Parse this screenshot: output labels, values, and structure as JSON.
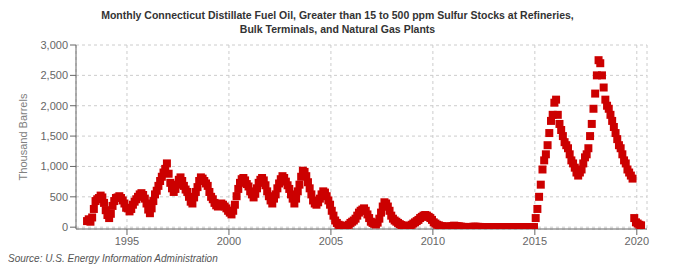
{
  "chart_data": {
    "type": "scatter",
    "title": "Monthly Connecticut Distillate Fuel Oil, Greater than 15 to 500 ppm Sulfur Stocks at Refineries,\nBulk Terminals, and Natural Gas Plants",
    "ylabel": "Thousand Barrels",
    "annotations": [
      "Source: U.S. Energy Information Administration"
    ],
    "color": "#cc0000",
    "marker": "square",
    "grid": true,
    "xlim": [
      1992.5,
      2020.5
    ],
    "ylim": [
      -30,
      3000
    ],
    "xticks": [
      1995,
      2000,
      2005,
      2010,
      2015,
      2020
    ],
    "yticks": [
      0,
      500,
      {
        "value": 1000,
        "label": "1,000"
      },
      {
        "value": 1500,
        "label": "1,500"
      },
      {
        "value": 2000,
        "label": "2,000"
      },
      {
        "value": 2500,
        "label": "2,500"
      },
      {
        "value": 3000,
        "label": "3,000"
      }
    ],
    "x": [
      1993.0416667,
      1993.125,
      1993.2083333,
      1993.2916667,
      1993.375,
      1993.4583333,
      1993.5416667,
      1993.625,
      1993.7083333,
      1993.7916667,
      1993.875,
      1993.9583333,
      1994.0416667,
      1994.125,
      1994.2083333,
      1994.2916667,
      1994.375,
      1994.4583333,
      1994.5416667,
      1994.625,
      1994.7083333,
      1994.7916667,
      1994.875,
      1994.9583333,
      1995.0416667,
      1995.125,
      1995.2083333,
      1995.2916667,
      1995.375,
      1995.4583333,
      1995.5416667,
      1995.625,
      1995.7083333,
      1995.7916667,
      1995.875,
      1995.9583333,
      1996.0416667,
      1996.125,
      1996.2083333,
      1996.2916667,
      1996.375,
      1996.4583333,
      1996.5416667,
      1996.625,
      1996.7083333,
      1996.7916667,
      1996.875,
      1996.9583333,
      1997.0416667,
      1997.125,
      1997.2083333,
      1997.2916667,
      1997.375,
      1997.4583333,
      1997.5416667,
      1997.625,
      1997.7083333,
      1997.7916667,
      1997.875,
      1997.9583333,
      1998.0416667,
      1998.125,
      1998.2083333,
      1998.2916667,
      1998.375,
      1998.4583333,
      1998.5416667,
      1998.625,
      1998.7083333,
      1998.7916667,
      1998.875,
      1998.9583333,
      1999.0416667,
      1999.125,
      1999.2083333,
      1999.2916667,
      1999.375,
      1999.4583333,
      1999.5416667,
      1999.625,
      1999.7083333,
      1999.7916667,
      1999.875,
      1999.9583333,
      2000.0416667,
      2000.125,
      2000.2083333,
      2000.2916667,
      2000.375,
      2000.4583333,
      2000.5416667,
      2000.625,
      2000.7083333,
      2000.7916667,
      2000.875,
      2000.9583333,
      2001.0416667,
      2001.125,
      2001.2083333,
      2001.2916667,
      2001.375,
      2001.4583333,
      2001.5416667,
      2001.625,
      2001.7083333,
      2001.7916667,
      2001.875,
      2001.9583333,
      2002.0416667,
      2002.125,
      2002.2083333,
      2002.2916667,
      2002.375,
      2002.4583333,
      2002.5416667,
      2002.625,
      2002.7083333,
      2002.7916667,
      2002.875,
      2002.9583333,
      2003.0416667,
      2003.125,
      2003.2083333,
      2003.2916667,
      2003.375,
      2003.4583333,
      2003.5416667,
      2003.625,
      2003.7083333,
      2003.7916667,
      2003.875,
      2003.9583333,
      2004.0416667,
      2004.125,
      2004.2083333,
      2004.2916667,
      2004.375,
      2004.4583333,
      2004.5416667,
      2004.625,
      2004.7083333,
      2004.7916667,
      2004.875,
      2004.9583333,
      2005.0416667,
      2005.125,
      2005.2083333,
      2005.2916667,
      2005.375,
      2005.4583333,
      2005.5416667,
      2005.625,
      2005.7083333,
      2005.7916667,
      2005.875,
      2005.9583333,
      2006.0416667,
      2006.125,
      2006.2083333,
      2006.2916667,
      2006.375,
      2006.4583333,
      2006.5416667,
      2006.625,
      2006.7083333,
      2006.7916667,
      2006.875,
      2006.9583333,
      2007.0416667,
      2007.125,
      2007.2083333,
      2007.2916667,
      2007.375,
      2007.4583333,
      2007.5416667,
      2007.625,
      2007.7083333,
      2007.7916667,
      2007.875,
      2007.9583333,
      2008.0416667,
      2008.125,
      2008.2083333,
      2008.2916667,
      2008.375,
      2008.4583333,
      2008.5416667,
      2008.625,
      2008.7083333,
      2008.7916667,
      2008.875,
      2008.9583333,
      2009.0416667,
      2009.125,
      2009.2083333,
      2009.2916667,
      2009.375,
      2009.4583333,
      2009.5416667,
      2009.625,
      2009.7083333,
      2009.7916667,
      2009.875,
      2009.9583333,
      2010.0416667,
      2010.125,
      2010.2083333,
      2010.2916667,
      2010.375,
      2010.4583333,
      2010.5416667,
      2010.625,
      2010.7083333,
      2010.7916667,
      2010.875,
      2010.9583333,
      2011.0416667,
      2011.125,
      2011.2083333,
      2011.2916667,
      2011.375,
      2011.4583333,
      2011.5416667,
      2011.625,
      2011.7083333,
      2011.7916667,
      2011.875,
      2011.9583333,
      2012.0416667,
      2012.125,
      2012.2083333,
      2012.2916667,
      2012.375,
      2012.4583333,
      2012.5416667,
      2012.625,
      2012.7083333,
      2012.7916667,
      2012.875,
      2012.9583333,
      2013.0416667,
      2013.125,
      2013.2083333,
      2013.2916667,
      2013.375,
      2013.4583333,
      2013.5416667,
      2013.625,
      2013.7083333,
      2013.7916667,
      2013.875,
      2013.9583333,
      2014.0416667,
      2014.125,
      2014.2083333,
      2014.2916667,
      2014.375,
      2014.4583333,
      2014.5416667,
      2014.625,
      2014.7083333,
      2014.7916667,
      2014.875,
      2014.9583333,
      2015.0416667,
      2015.125,
      2015.2083333,
      2015.2916667,
      2015.375,
      2015.4583333,
      2015.5416667,
      2015.625,
      2015.7083333,
      2015.7916667,
      2015.875,
      2015.9583333,
      2016.0416667,
      2016.125,
      2016.2083333,
      2016.2916667,
      2016.375,
      2016.4583333,
      2016.5416667,
      2016.625,
      2016.7083333,
      2016.7916667,
      2016.875,
      2016.9583333,
      2017.0416667,
      2017.125,
      2017.2083333,
      2017.2916667,
      2017.375,
      2017.4583333,
      2017.5416667,
      2017.625,
      2017.7083333,
      2017.7916667,
      2017.875,
      2017.9583333,
      2018.0416667,
      2018.125,
      2018.2083333,
      2018.2916667,
      2018.375,
      2018.4583333,
      2018.5416667,
      2018.625,
      2018.7083333,
      2018.7916667,
      2018.875,
      2018.9583333,
      2019.0416667,
      2019.125,
      2019.2083333,
      2019.2916667,
      2019.375,
      2019.4583333,
      2019.5416667,
      2019.625,
      2019.7083333,
      2019.7916667,
      2019.875,
      2019.9583333,
      2020.0416667,
      2020.125,
      2020.2083333
    ],
    "values": [
      100,
      130,
      90,
      160,
      300,
      430,
      460,
      480,
      520,
      490,
      400,
      280,
      200,
      150,
      220,
      350,
      430,
      480,
      490,
      510,
      480,
      440,
      390,
      320,
      310,
      260,
      300,
      370,
      420,
      460,
      500,
      540,
      560,
      530,
      470,
      390,
      290,
      230,
      310,
      430,
      540,
      600,
      680,
      760,
      830,
      900,
      960,
      1050,
      880,
      730,
      640,
      580,
      630,
      700,
      780,
      820,
      760,
      680,
      620,
      580,
      500,
      420,
      390,
      490,
      580,
      660,
      760,
      820,
      800,
      760,
      720,
      680,
      580,
      500,
      460,
      400,
      360,
      340,
      360,
      390,
      370,
      340,
      310,
      270,
      240,
      210,
      270,
      370,
      510,
      630,
      730,
      790,
      810,
      770,
      710,
      670,
      590,
      540,
      490,
      550,
      640,
      730,
      780,
      810,
      770,
      690,
      590,
      510,
      440,
      390,
      470,
      540,
      640,
      720,
      790,
      840,
      810,
      750,
      690,
      630,
      540,
      470,
      390,
      470,
      590,
      700,
      830,
      930,
      910,
      840,
      740,
      640,
      540,
      440,
      390,
      370,
      410,
      470,
      540,
      590,
      570,
      510,
      440,
      370,
      270,
      190,
      110,
      70,
      40,
      30,
      20,
      15,
      10,
      20,
      40,
      70,
      90,
      110,
      140,
      190,
      240,
      270,
      290,
      310,
      270,
      210,
      150,
      90,
      70,
      55,
      45,
      75,
      140,
      240,
      340,
      410,
      390,
      340,
      270,
      190,
      140,
      110,
      90,
      70,
      50,
      35,
      25,
      15,
      10,
      15,
      25,
      40,
      60,
      80,
      100,
      120,
      150,
      170,
      190,
      200,
      190,
      170,
      150,
      120,
      80,
      60,
      40,
      30,
      20,
      15,
      10,
      8,
      5,
      8,
      12,
      18,
      25,
      20,
      15,
      12,
      8,
      5,
      4,
      3,
      2,
      3,
      4,
      6,
      8,
      6,
      5,
      4,
      3,
      2,
      2,
      2,
      2,
      2,
      2,
      2,
      2,
      2,
      2,
      2,
      2,
      2,
      2,
      2,
      2,
      2,
      2,
      2,
      2,
      2,
      2,
      2,
      2,
      2,
      2,
      2,
      2,
      2,
      2,
      2,
      150,
      300,
      500,
      700,
      950,
      1100,
      1200,
      1350,
      1550,
      1750,
      1850,
      2050,
      2100,
      1850,
      1700,
      1600,
      1500,
      1400,
      1350,
      1300,
      1200,
      1100,
      1050,
      980,
      900,
      850,
      900,
      950,
      1050,
      1150,
      1200,
      1300,
      1500,
      1700,
      1950,
      2200,
      2500,
      2750,
      2700,
      2500,
      2300,
      2100,
      2000,
      1950,
      1850,
      1750,
      1650,
      1550,
      1450,
      1350,
      1300,
      1200,
      1100,
      1050,
      950,
      900,
      850,
      800,
      150,
      80,
      60,
      40,
      30
    ]
  }
}
